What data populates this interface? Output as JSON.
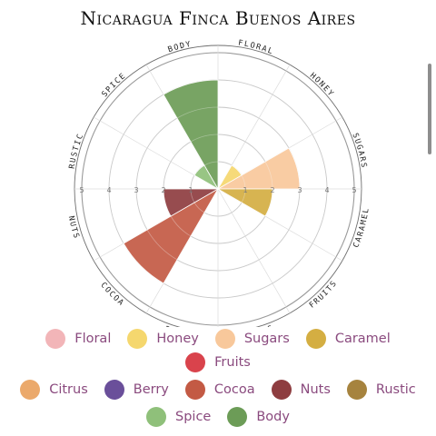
{
  "page": {
    "title": "Nicaragua Finca Buenos Aires"
  },
  "chart_data": {
    "type": "polar-area",
    "title": "Nicaragua Finca Buenos Aires",
    "categories": [
      "Floral",
      "Honey",
      "Sugars",
      "Caramel",
      "Fruits",
      "Citrus",
      "Berry",
      "Cocoa",
      "Nuts",
      "Rustic",
      "Spice",
      "Body"
    ],
    "values": [
      0,
      1,
      3,
      2,
      0,
      0,
      0,
      4,
      2,
      0,
      1,
      4
    ],
    "colors": [
      "#f2b5b8",
      "#f5d76e",
      "#f8c89b",
      "#d4ae42",
      "#d9434c",
      "#eba96b",
      "#6a4f9a",
      "#c35a44",
      "#8e3d40",
      "#a6833e",
      "#8fc07a",
      "#6c9c57"
    ],
    "rlim": [
      0,
      5
    ],
    "rticks": [
      "1",
      "2",
      "3",
      "4",
      "5"
    ],
    "grid": true,
    "legend": "bottom"
  }
}
